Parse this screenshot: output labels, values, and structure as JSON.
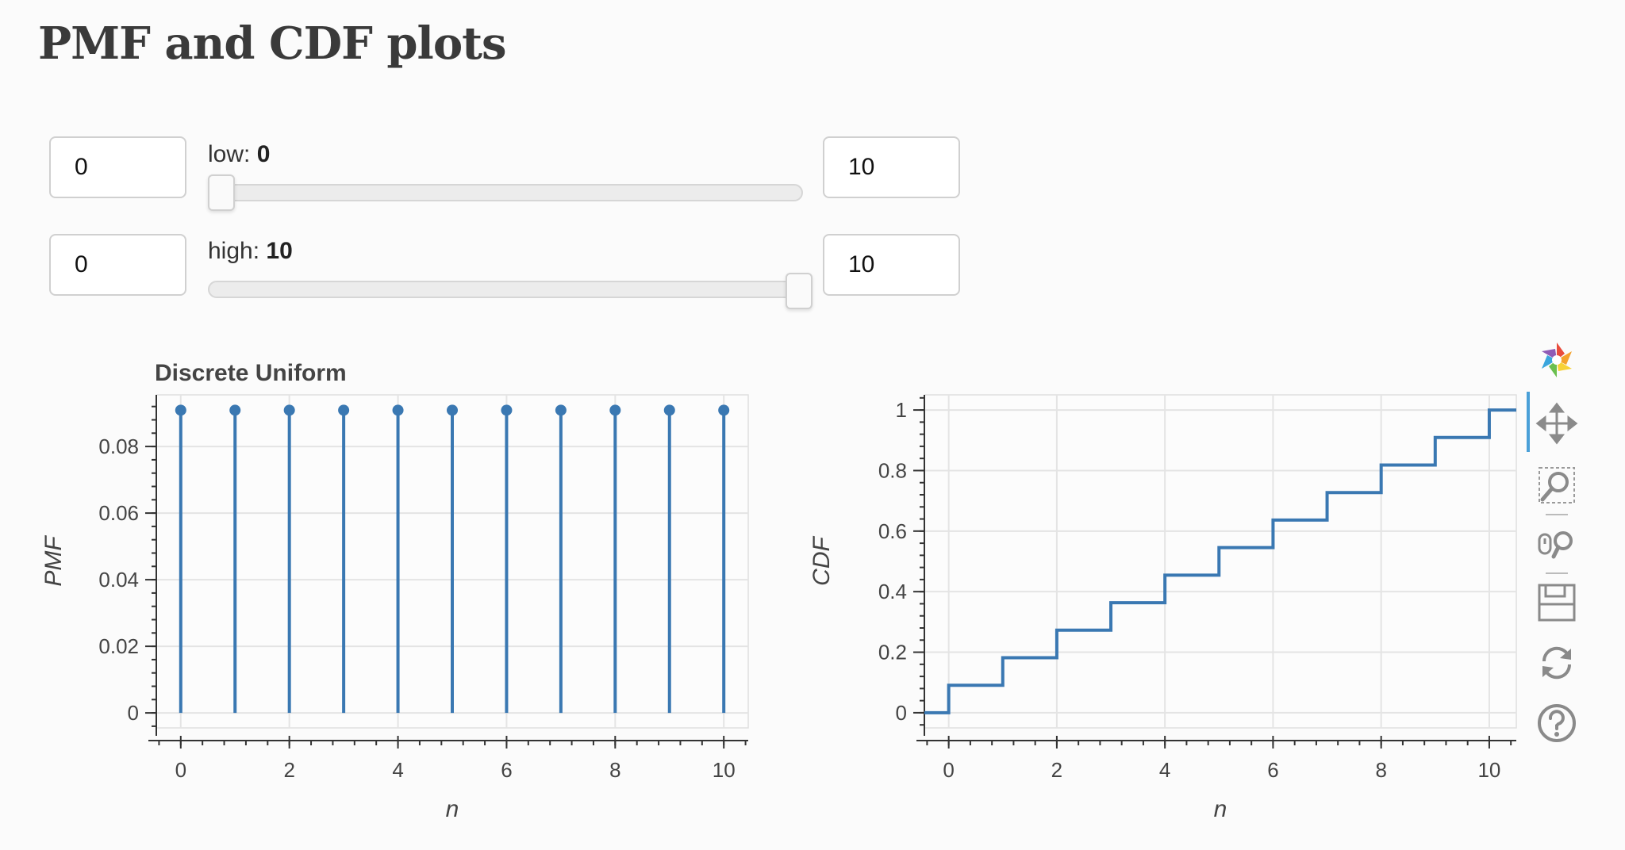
{
  "page": {
    "title": "PMF and CDF plots"
  },
  "controls": {
    "low": {
      "label": "low: ",
      "value": "0",
      "min_input": "0",
      "max_input": "10",
      "min": 0,
      "max": 10,
      "current": 0
    },
    "high": {
      "label": "high: ",
      "value": "10",
      "min_input": "0",
      "max_input": "10",
      "min": 0,
      "max": 10,
      "current": 10
    }
  },
  "toolbar": {
    "items": [
      "bokeh-logo-icon",
      "pan-icon",
      "box-zoom-icon",
      "wheel-zoom-icon",
      "save-icon",
      "reset-icon",
      "help-icon"
    ],
    "active": "pan-icon"
  },
  "colors": {
    "series": "#3a78b2",
    "grid": "#e4e4e4",
    "axis": "#333333"
  },
  "chart_data": [
    {
      "type": "line",
      "title": "Discrete Uniform",
      "xlabel": "n",
      "ylabel": "PMF",
      "x": [
        0,
        1,
        2,
        3,
        4,
        5,
        6,
        7,
        8,
        9,
        10
      ],
      "values": [
        0.0909,
        0.0909,
        0.0909,
        0.0909,
        0.0909,
        0.0909,
        0.0909,
        0.0909,
        0.0909,
        0.0909,
        0.0909
      ],
      "xlim": [
        -0.45,
        10.45
      ],
      "ylim": [
        -0.0045,
        0.0955
      ],
      "xticks": [
        0,
        2,
        4,
        6,
        8,
        10
      ],
      "yticks": [
        0,
        0.02,
        0.04,
        0.06,
        0.08
      ],
      "xtick_labels": [
        "0",
        "2",
        "4",
        "6",
        "8",
        "10"
      ],
      "ytick_labels": [
        "0",
        "0.02",
        "0.04",
        "0.06",
        "0.08"
      ],
      "grid": true
    },
    {
      "type": "line",
      "title": "",
      "xlabel": "n",
      "ylabel": "CDF",
      "x": [
        -0.45,
        0,
        1,
        2,
        3,
        4,
        5,
        6,
        7,
        8,
        9,
        10,
        10.5
      ],
      "values": [
        0,
        0.0909,
        0.1818,
        0.2727,
        0.3636,
        0.4545,
        0.5455,
        0.6364,
        0.7273,
        0.8182,
        0.9091,
        1.0,
        1.0
      ],
      "xlim": [
        -0.45,
        10.5
      ],
      "ylim": [
        -0.05,
        1.05
      ],
      "xticks": [
        0,
        2,
        4,
        6,
        8,
        10
      ],
      "yticks": [
        0,
        0.2,
        0.4,
        0.6,
        0.8,
        1
      ],
      "xtick_labels": [
        "0",
        "2",
        "4",
        "6",
        "8",
        "10"
      ],
      "ytick_labels": [
        "0",
        "0.2",
        "0.4",
        "0.6",
        "0.8",
        "1"
      ],
      "grid": true
    }
  ]
}
